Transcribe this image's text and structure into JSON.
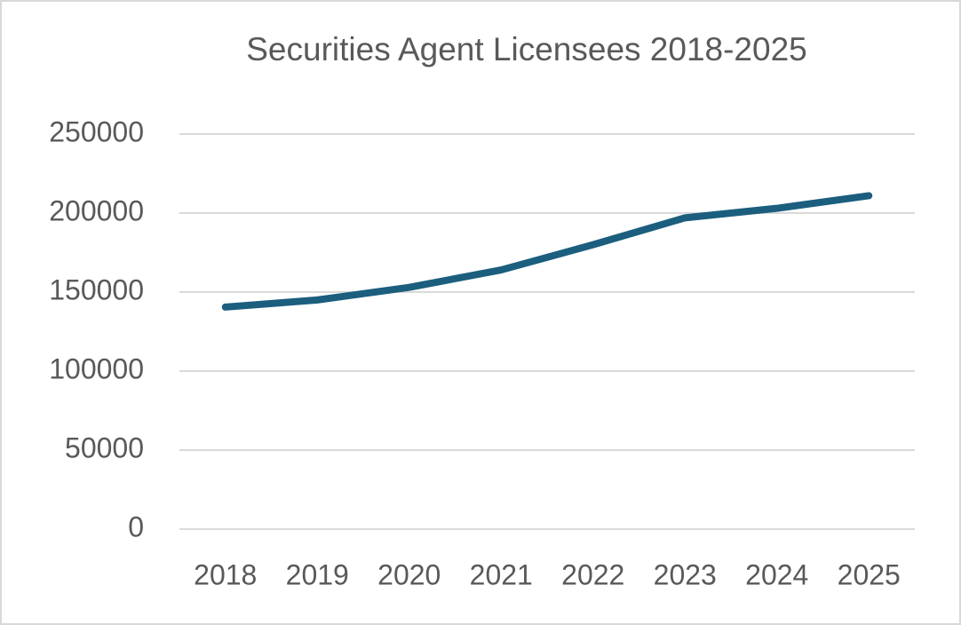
{
  "chart_data": {
    "type": "line",
    "title": "Securities Agent Licensees 2018-2025",
    "categories": [
      "2018",
      "2019",
      "2020",
      "2021",
      "2022",
      "2023",
      "2024",
      "2025"
    ],
    "values": [
      140500,
      145000,
      153000,
      164000,
      180000,
      197000,
      203000,
      211000
    ],
    "color": "#1b5e7e",
    "ylim": [
      0,
      250000
    ],
    "yticks": [
      0,
      50000,
      100000,
      150000,
      200000,
      250000
    ],
    "grid": true
  }
}
